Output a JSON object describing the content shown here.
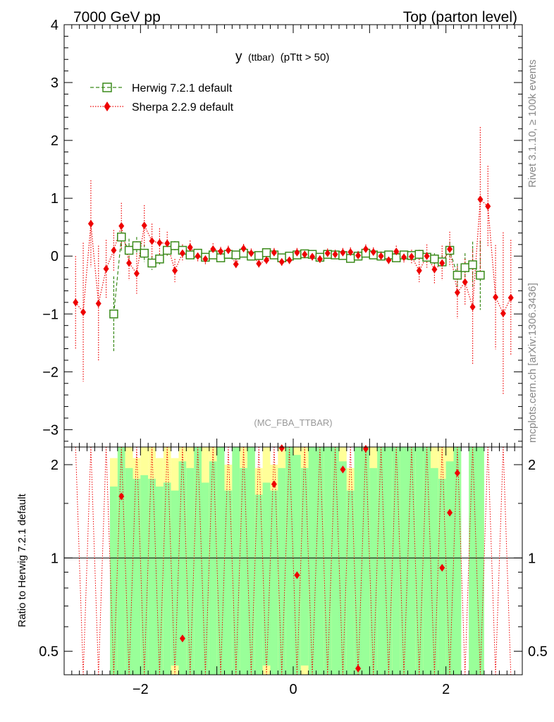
{
  "header": {
    "left": "7000 GeV pp",
    "right": "Top (parton level)"
  },
  "plot_title": {
    "main": "y",
    "sub": "(ttbar)",
    "cut": "(pTtt > 50)"
  },
  "side_labels": {
    "rivet": "Rivet 3.1.10, ≥ 100k events",
    "source": "mcplots.cern.ch [arXiv:1306.3436]"
  },
  "analysis_tag": "(MC_FBA_TTBAR)",
  "ratio_ylabel": "Ratio to Herwig 7.2.1 default",
  "colors": {
    "herwig": "#3a8a1a",
    "sherpa": "#ee0000",
    "band_inner": "#99ff99",
    "band_outer": "#ffff99"
  },
  "chart_data": [
    {
      "type": "scatter",
      "panel": "main",
      "xlim": [
        -3,
        3
      ],
      "ylim": [
        -3.3,
        4
      ],
      "xticks": [
        "−2",
        "0",
        "2"
      ],
      "yticks": [
        "−3",
        "−2",
        "−1",
        "0",
        "1",
        "2",
        "3",
        "4"
      ],
      "legend_position": "top-left",
      "series": [
        {
          "name": "Herwig 7.2.1 default",
          "marker": "open-square",
          "line": "dashed",
          "x": [
            -2.35,
            -2.25,
            -2.15,
            -2.05,
            -1.95,
            -1.85,
            -1.75,
            -1.65,
            -1.55,
            -1.45,
            -1.35,
            -1.25,
            -1.15,
            -1.05,
            -0.95,
            -0.85,
            -0.75,
            -0.65,
            -0.55,
            -0.45,
            -0.35,
            -0.25,
            -0.15,
            -0.05,
            0.05,
            0.15,
            0.25,
            0.35,
            0.45,
            0.55,
            0.65,
            0.75,
            0.85,
            0.95,
            1.05,
            1.15,
            1.25,
            1.35,
            1.45,
            1.55,
            1.65,
            1.75,
            1.85,
            1.95,
            2.05,
            2.15,
            2.25,
            2.35,
            2.45
          ],
          "y": [
            -1.0,
            0.33,
            0.1,
            0.18,
            0.05,
            -0.12,
            -0.05,
            0.1,
            0.18,
            0.1,
            0.02,
            0.05,
            -0.02,
            0.02,
            -0.03,
            0.03,
            0.02,
            0.05,
            0.0,
            0.01,
            0.06,
            0.02,
            -0.03,
            0.0,
            0.02,
            0.04,
            0.03,
            -0.02,
            0.03,
            0.02,
            0.01,
            -0.04,
            0.0,
            0.05,
            0.02,
            0.0,
            0.02,
            -0.03,
            0.02,
            0.01,
            0.03,
            -0.02,
            -0.05,
            -0.1,
            0.1,
            -0.33,
            -0.2,
            -0.15,
            -0.33
          ],
          "yerr": [
            0.65,
            0.25,
            0.2,
            0.15,
            0.15,
            0.12,
            0.1,
            0.1,
            0.08,
            0.08,
            0.06,
            0.06,
            0.06,
            0.05,
            0.05,
            0.05,
            0.05,
            0.05,
            0.05,
            0.05,
            0.05,
            0.05,
            0.05,
            0.05,
            0.05,
            0.05,
            0.05,
            0.05,
            0.05,
            0.05,
            0.05,
            0.05,
            0.05,
            0.05,
            0.05,
            0.05,
            0.05,
            0.06,
            0.06,
            0.06,
            0.08,
            0.08,
            0.1,
            0.12,
            0.15,
            0.2,
            0.25,
            0.4,
            0.6
          ]
        },
        {
          "name": "Sherpa 2.2.9 default",
          "marker": "filled-diamond",
          "line": "dotted",
          "x": [
            -2.85,
            -2.75,
            -2.65,
            -2.55,
            -2.45,
            -2.35,
            -2.25,
            -2.15,
            -2.05,
            -1.95,
            -1.85,
            -1.75,
            -1.65,
            -1.55,
            -1.45,
            -1.35,
            -1.25,
            -1.15,
            -1.05,
            -0.95,
            -0.85,
            -0.75,
            -0.65,
            -0.55,
            -0.45,
            -0.35,
            -0.25,
            -0.15,
            -0.05,
            0.05,
            0.15,
            0.25,
            0.35,
            0.45,
            0.55,
            0.65,
            0.75,
            0.85,
            0.95,
            1.05,
            1.15,
            1.25,
            1.35,
            1.45,
            1.55,
            1.65,
            1.75,
            1.85,
            1.95,
            2.05,
            2.15,
            2.25,
            2.35,
            2.45,
            2.55,
            2.65,
            2.75,
            2.85
          ],
          "y": [
            -0.8,
            -0.97,
            0.56,
            -0.82,
            -0.22,
            0.1,
            0.52,
            -0.12,
            -0.3,
            0.53,
            0.26,
            0.23,
            0.22,
            -0.25,
            0.05,
            0.15,
            0.0,
            -0.05,
            0.12,
            0.08,
            0.1,
            -0.14,
            0.13,
            0.05,
            -0.13,
            -0.07,
            0.06,
            -0.1,
            -0.07,
            0.06,
            0.03,
            -0.01,
            -0.05,
            0.05,
            0.03,
            0.06,
            0.07,
            0.01,
            0.12,
            0.07,
            0.0,
            -0.07,
            0.08,
            -0.02,
            -0.01,
            -0.25,
            0.0,
            -0.23,
            -0.12,
            0.12,
            -0.63,
            -0.45,
            -0.88,
            0.98,
            0.86,
            -0.71,
            -0.99,
            -0.72
          ],
          "yerr": [
            0.8,
            1.2,
            0.75,
            1.0,
            0.5,
            0.35,
            0.4,
            0.3,
            0.35,
            0.35,
            0.3,
            0.25,
            0.2,
            0.2,
            0.15,
            0.12,
            0.1,
            0.1,
            0.1,
            0.08,
            0.08,
            0.08,
            0.08,
            0.08,
            0.08,
            0.08,
            0.08,
            0.08,
            0.08,
            0.08,
            0.08,
            0.08,
            0.08,
            0.08,
            0.08,
            0.08,
            0.08,
            0.08,
            0.08,
            0.08,
            0.08,
            0.08,
            0.1,
            0.1,
            0.12,
            0.2,
            0.2,
            0.25,
            0.3,
            0.3,
            0.45,
            0.4,
            1.0,
            1.25,
            0.7,
            0.9,
            1.4,
            1.0
          ]
        }
      ]
    },
    {
      "type": "scatter",
      "panel": "ratio",
      "xlim": [
        -3,
        3
      ],
      "ylim": [
        0.42,
        2.28
      ],
      "yscale": "log",
      "xticks": [
        "−2",
        "0",
        "2"
      ],
      "yticks": [
        "0.5",
        "1",
        "2"
      ],
      "reference_line": 1,
      "series": [
        {
          "name": "Sherpa 2.2.9 default",
          "x": [
            -2.25,
            -1.45,
            -0.25,
            -0.15,
            0.05,
            0.65,
            0.85,
            0.95,
            1.95,
            2.05,
            2.15
          ],
          "y": [
            1.58,
            0.55,
            1.73,
            2.26,
            0.88,
            1.93,
            0.44,
            2.25,
            0.93,
            1.4,
            1.88
          ]
        }
      ],
      "bands": {
        "x": [
          -2.35,
          -2.25,
          -2.15,
          -2.05,
          -1.95,
          -1.85,
          -1.75,
          -1.65,
          -1.55,
          -1.45,
          -1.35,
          -1.25,
          -1.15,
          -1.05,
          -0.95,
          -0.85,
          -0.75,
          -0.65,
          -0.55,
          -0.45,
          -0.35,
          -0.25,
          -0.15,
          -0.05,
          0.05,
          0.15,
          0.25,
          0.35,
          0.45,
          0.55,
          0.65,
          0.75,
          0.85,
          0.95,
          1.05,
          1.15,
          1.25,
          1.35,
          1.45,
          1.55,
          1.65,
          1.75,
          1.85,
          1.95,
          2.05,
          2.15,
          2.25,
          2.35,
          2.45
        ],
        "inner_top": [
          1.7,
          2.28,
          1.95,
          1.8,
          1.85,
          1.8,
          1.7,
          1.75,
          1.65,
          2.05,
          1.95,
          2.28,
          1.75,
          2.05,
          2.28,
          1.65,
          2.28,
          1.95,
          2.28,
          1.6,
          1.75,
          1.65,
          1.95,
          2.28,
          2.15,
          1.95,
          2.28,
          2.28,
          2.28,
          2.28,
          2.05,
          1.65,
          2.28,
          2.28,
          1.95,
          2.28,
          2.28,
          2.28,
          2.28,
          2.28,
          2.28,
          2.28,
          1.95,
          1.8,
          2.05,
          2.28,
          0.0,
          2.28,
          2.28
        ],
        "outer_top": [
          2.1,
          2.28,
          2.28,
          2.1,
          2.28,
          2.28,
          2.1,
          2.28,
          2.1,
          2.28,
          2.28,
          2.28,
          2.28,
          2.28,
          2.28,
          2.0,
          2.28,
          2.28,
          2.28,
          1.95,
          2.28,
          2.0,
          2.28,
          2.28,
          2.28,
          2.28,
          2.28,
          2.28,
          2.28,
          2.28,
          2.28,
          1.95,
          2.28,
          2.28,
          2.28,
          2.28,
          2.28,
          2.28,
          2.28,
          2.28,
          2.28,
          2.28,
          2.28,
          2.28,
          2.28,
          2.28,
          0.0,
          2.28,
          2.28
        ],
        "inner_bottom": [
          0.42,
          0.42,
          0.42,
          0.42,
          0.42,
          0.42,
          0.42,
          0.42,
          0.45,
          0.42,
          0.42,
          0.42,
          0.42,
          0.42,
          0.42,
          0.42,
          0.42,
          0.42,
          0.42,
          0.42,
          0.45,
          0.42,
          0.42,
          0.42,
          0.42,
          0.45,
          0.42,
          0.42,
          0.42,
          0.42,
          0.42,
          0.42,
          0.42,
          0.42,
          0.42,
          0.42,
          0.42,
          0.42,
          0.42,
          0.42,
          0.42,
          0.42,
          0.42,
          0.42,
          0.42,
          0.42,
          0.0,
          0.42,
          0.42
        ]
      }
    }
  ]
}
